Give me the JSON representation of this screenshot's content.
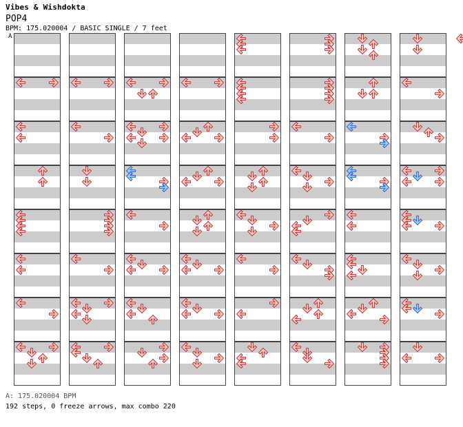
{
  "header": {
    "song_title": "Vibes & Wishdokta",
    "chart_name": "POP4",
    "info_line": "BPM: 175.020004 / BASIC SINGLE / 7 feet",
    "marker_label": "A"
  },
  "footer": {
    "bpm_line": "A: 175.020004 BPM",
    "stats_line": "192 steps, 0 freeze arrows, max combo 220"
  },
  "colors": {
    "normal_arrow_fill": "#ffcccc",
    "normal_arrow_stroke": "#cc3333",
    "blue_arrow_fill": "#99ccff",
    "blue_arrow_stroke": "#3366cc",
    "shade_band": "#cccccc",
    "cursor_line": "#3b6fd0"
  },
  "chart": {
    "columns": 8,
    "rows_per_column": 8,
    "slots_per_measure": 16,
    "lane_order": [
      "left",
      "down",
      "up",
      "right"
    ],
    "notes": [
      [
        0,
        1,
        0,
        "left",
        "red"
      ],
      [
        0,
        1,
        0,
        "right",
        "red"
      ],
      [
        0,
        2,
        0,
        "left",
        "red"
      ],
      [
        0,
        2,
        4,
        "left",
        "red"
      ],
      [
        0,
        3,
        0,
        "up",
        "red"
      ],
      [
        0,
        3,
        4,
        "up",
        "red"
      ],
      [
        0,
        4,
        0,
        "left",
        "red"
      ],
      [
        0,
        4,
        2,
        "left",
        "red"
      ],
      [
        0,
        4,
        4,
        "left",
        "red"
      ],
      [
        0,
        4,
        6,
        "left",
        "red"
      ],
      [
        0,
        5,
        0,
        "left",
        "red"
      ],
      [
        0,
        5,
        4,
        "left",
        "red"
      ],
      [
        0,
        6,
        0,
        "left",
        "red"
      ],
      [
        0,
        6,
        4,
        "right",
        "red"
      ],
      [
        0,
        7,
        0,
        "left",
        "red"
      ],
      [
        0,
        7,
        0,
        "right",
        "red"
      ],
      [
        0,
        7,
        2,
        "down",
        "red"
      ],
      [
        0,
        7,
        4,
        "up",
        "red"
      ],
      [
        0,
        7,
        6,
        "down",
        "red"
      ],
      [
        1,
        1,
        0,
        "left",
        "red"
      ],
      [
        1,
        1,
        0,
        "right",
        "red"
      ],
      [
        1,
        2,
        0,
        "left",
        "red"
      ],
      [
        1,
        2,
        4,
        "right",
        "red"
      ],
      [
        1,
        3,
        0,
        "down",
        "red"
      ],
      [
        1,
        3,
        4,
        "down",
        "red"
      ],
      [
        1,
        4,
        0,
        "right",
        "red"
      ],
      [
        1,
        4,
        2,
        "right",
        "red"
      ],
      [
        1,
        4,
        4,
        "right",
        "red"
      ],
      [
        1,
        4,
        6,
        "right",
        "red"
      ],
      [
        1,
        5,
        0,
        "left",
        "red"
      ],
      [
        1,
        5,
        4,
        "right",
        "red"
      ],
      [
        1,
        6,
        0,
        "left",
        "red"
      ],
      [
        1,
        6,
        0,
        "right",
        "red"
      ],
      [
        1,
        6,
        2,
        "down",
        "red"
      ],
      [
        1,
        6,
        4,
        "left",
        "red"
      ],
      [
        1,
        6,
        6,
        "down",
        "red"
      ],
      [
        1,
        7,
        0,
        "left",
        "red"
      ],
      [
        1,
        7,
        0,
        "right",
        "red"
      ],
      [
        1,
        7,
        2,
        "left",
        "red"
      ],
      [
        1,
        7,
        4,
        "down",
        "red"
      ],
      [
        1,
        7,
        6,
        "up",
        "red"
      ],
      [
        2,
        1,
        0,
        "left",
        "red"
      ],
      [
        2,
        1,
        0,
        "right",
        "red"
      ],
      [
        2,
        1,
        4,
        "down",
        "red"
      ],
      [
        2,
        1,
        4,
        "up",
        "red"
      ],
      [
        2,
        2,
        0,
        "left",
        "red"
      ],
      [
        2,
        2,
        0,
        "right",
        "red"
      ],
      [
        2,
        2,
        2,
        "down",
        "red"
      ],
      [
        2,
        2,
        4,
        "left",
        "red"
      ],
      [
        2,
        2,
        4,
        "right",
        "red"
      ],
      [
        2,
        2,
        6,
        "down",
        "red"
      ],
      [
        2,
        3,
        0,
        "left",
        "blue"
      ],
      [
        2,
        3,
        2,
        "left",
        "blue"
      ],
      [
        2,
        3,
        4,
        "right",
        "red"
      ],
      [
        2,
        3,
        6,
        "right",
        "blue"
      ],
      [
        2,
        4,
        0,
        "left",
        "red"
      ],
      [
        2,
        4,
        4,
        "right",
        "red"
      ],
      [
        2,
        5,
        0,
        "left",
        "red"
      ],
      [
        2,
        5,
        2,
        "down",
        "red"
      ],
      [
        2,
        5,
        4,
        "left",
        "red"
      ],
      [
        2,
        5,
        4,
        "right",
        "red"
      ],
      [
        2,
        6,
        0,
        "left",
        "red"
      ],
      [
        2,
        6,
        2,
        "down",
        "red"
      ],
      [
        2,
        6,
        4,
        "left",
        "red"
      ],
      [
        2,
        6,
        6,
        "up",
        "red"
      ],
      [
        2,
        7,
        0,
        "right",
        "red"
      ],
      [
        2,
        7,
        2,
        "down",
        "red"
      ],
      [
        2,
        7,
        4,
        "right",
        "red"
      ],
      [
        2,
        7,
        6,
        "up",
        "red"
      ],
      [
        3,
        1,
        0,
        "left",
        "red"
      ],
      [
        3,
        1,
        0,
        "right",
        "red"
      ],
      [
        3,
        2,
        0,
        "up",
        "red"
      ],
      [
        3,
        2,
        2,
        "down",
        "red"
      ],
      [
        3,
        2,
        4,
        "left",
        "red"
      ],
      [
        3,
        2,
        4,
        "right",
        "red"
      ],
      [
        3,
        3,
        0,
        "up",
        "red"
      ],
      [
        3,
        3,
        2,
        "down",
        "red"
      ],
      [
        3,
        3,
        4,
        "left",
        "red"
      ],
      [
        3,
        3,
        4,
        "right",
        "red"
      ],
      [
        3,
        4,
        0,
        "up",
        "red"
      ],
      [
        3,
        4,
        2,
        "down",
        "red"
      ],
      [
        3,
        4,
        4,
        "up",
        "red"
      ],
      [
        3,
        4,
        6,
        "down",
        "red"
      ],
      [
        3,
        5,
        0,
        "left",
        "red"
      ],
      [
        3,
        5,
        2,
        "down",
        "red"
      ],
      [
        3,
        5,
        4,
        "left",
        "red"
      ],
      [
        3,
        5,
        4,
        "right",
        "red"
      ],
      [
        3,
        6,
        0,
        "left",
        "red"
      ],
      [
        3,
        6,
        2,
        "down",
        "red"
      ],
      [
        3,
        6,
        4,
        "left",
        "red"
      ],
      [
        3,
        6,
        4,
        "right",
        "red"
      ],
      [
        3,
        7,
        0,
        "left",
        "red"
      ],
      [
        3,
        7,
        2,
        "down",
        "red"
      ],
      [
        3,
        7,
        4,
        "right",
        "red"
      ],
      [
        3,
        7,
        6,
        "down",
        "red"
      ],
      [
        4,
        0,
        0,
        "left",
        "red"
      ],
      [
        4,
        0,
        2,
        "left",
        "red"
      ],
      [
        4,
        0,
        4,
        "left",
        "red"
      ],
      [
        4,
        1,
        0,
        "left",
        "red"
      ],
      [
        4,
        1,
        2,
        "left",
        "red"
      ],
      [
        4,
        1,
        4,
        "left",
        "red"
      ],
      [
        4,
        1,
        6,
        "left",
        "red"
      ],
      [
        4,
        2,
        0,
        "right",
        "red"
      ],
      [
        4,
        2,
        4,
        "right",
        "red"
      ],
      [
        4,
        3,
        0,
        "up",
        "red"
      ],
      [
        4,
        3,
        2,
        "down",
        "red"
      ],
      [
        4,
        3,
        4,
        "up",
        "red"
      ],
      [
        4,
        3,
        6,
        "down",
        "red"
      ],
      [
        4,
        4,
        0,
        "left",
        "red"
      ],
      [
        4,
        4,
        2,
        "down",
        "red"
      ],
      [
        4,
        4,
        4,
        "right",
        "red"
      ],
      [
        4,
        4,
        6,
        "down",
        "red"
      ],
      [
        4,
        5,
        0,
        "left",
        "red"
      ],
      [
        4,
        5,
        4,
        "right",
        "red"
      ],
      [
        4,
        6,
        0,
        "right",
        "red"
      ],
      [
        4,
        6,
        4,
        "left",
        "red"
      ],
      [
        4,
        7,
        0,
        "down",
        "red"
      ],
      [
        4,
        7,
        2,
        "up",
        "red"
      ],
      [
        4,
        7,
        4,
        "left",
        "red"
      ],
      [
        4,
        7,
        6,
        "left",
        "red"
      ],
      [
        5,
        0,
        0,
        "right",
        "red"
      ],
      [
        5,
        0,
        2,
        "right",
        "red"
      ],
      [
        5,
        0,
        4,
        "right",
        "red"
      ],
      [
        5,
        1,
        0,
        "right",
        "red"
      ],
      [
        5,
        1,
        2,
        "right",
        "red"
      ],
      [
        5,
        1,
        4,
        "right",
        "red"
      ],
      [
        5,
        1,
        6,
        "right",
        "red"
      ],
      [
        5,
        2,
        0,
        "left",
        "red"
      ],
      [
        5,
        2,
        4,
        "right",
        "red"
      ],
      [
        5,
        3,
        0,
        "left",
        "red"
      ],
      [
        5,
        3,
        2,
        "down",
        "red"
      ],
      [
        5,
        3,
        4,
        "right",
        "red"
      ],
      [
        5,
        3,
        6,
        "down",
        "red"
      ],
      [
        5,
        4,
        0,
        "right",
        "red"
      ],
      [
        5,
        4,
        2,
        "down",
        "red"
      ],
      [
        5,
        4,
        4,
        "left",
        "red"
      ],
      [
        5,
        4,
        6,
        "left",
        "red"
      ],
      [
        5,
        5,
        0,
        "left",
        "red"
      ],
      [
        5,
        5,
        2,
        "down",
        "red"
      ],
      [
        5,
        5,
        4,
        "right",
        "red"
      ],
      [
        5,
        5,
        6,
        "right",
        "red"
      ],
      [
        5,
        6,
        0,
        "up",
        "red"
      ],
      [
        5,
        6,
        2,
        "down",
        "red"
      ],
      [
        5,
        6,
        4,
        "up",
        "red"
      ],
      [
        5,
        6,
        6,
        "left",
        "red"
      ],
      [
        5,
        7,
        0,
        "left",
        "red"
      ],
      [
        5,
        7,
        2,
        "down",
        "red"
      ],
      [
        5,
        7,
        4,
        "down",
        "red"
      ],
      [
        5,
        7,
        6,
        "right",
        "red"
      ],
      [
        6,
        0,
        0,
        "down",
        "red"
      ],
      [
        6,
        0,
        2,
        "up",
        "red"
      ],
      [
        6,
        0,
        4,
        "down",
        "red"
      ],
      [
        6,
        0,
        6,
        "up",
        "red"
      ],
      [
        6,
        1,
        0,
        "up",
        "red"
      ],
      [
        6,
        1,
        4,
        "down",
        "red"
      ],
      [
        6,
        1,
        4,
        "up",
        "red"
      ],
      [
        6,
        2,
        0,
        "left",
        "blue"
      ],
      [
        6,
        2,
        4,
        "right",
        "red"
      ],
      [
        6,
        2,
        6,
        "right",
        "blue"
      ],
      [
        6,
        3,
        0,
        "left",
        "blue"
      ],
      [
        6,
        3,
        2,
        "left",
        "blue"
      ],
      [
        6,
        3,
        4,
        "right",
        "red"
      ],
      [
        6,
        3,
        6,
        "right",
        "blue"
      ],
      [
        6,
        4,
        0,
        "left",
        "red"
      ],
      [
        6,
        4,
        4,
        "left",
        "red"
      ],
      [
        6,
        5,
        0,
        "left",
        "red"
      ],
      [
        6,
        5,
        2,
        "left",
        "red"
      ],
      [
        6,
        5,
        4,
        "down",
        "red"
      ],
      [
        6,
        5,
        6,
        "left",
        "red"
      ],
      [
        6,
        6,
        0,
        "up",
        "red"
      ],
      [
        6,
        6,
        2,
        "down",
        "red"
      ],
      [
        6,
        6,
        4,
        "left",
        "red"
      ],
      [
        6,
        6,
        6,
        "right",
        "red"
      ],
      [
        6,
        7,
        0,
        "down",
        "red"
      ],
      [
        6,
        7,
        0,
        "right",
        "red"
      ],
      [
        6,
        7,
        2,
        "right",
        "red"
      ],
      [
        6,
        7,
        4,
        "right",
        "red"
      ],
      [
        6,
        7,
        6,
        "right",
        "red"
      ],
      [
        7,
        0,
        0,
        "down",
        "red"
      ],
      [
        7,
        0,
        4,
        "down",
        "red"
      ],
      [
        7,
        1,
        0,
        "left",
        "red"
      ],
      [
        7,
        1,
        4,
        "right",
        "red"
      ],
      [
        7,
        2,
        0,
        "down",
        "red"
      ],
      [
        7,
        2,
        2,
        "up",
        "red"
      ],
      [
        7,
        2,
        4,
        "right",
        "red"
      ],
      [
        7,
        3,
        0,
        "left",
        "red"
      ],
      [
        7,
        3,
        0,
        "right",
        "red"
      ],
      [
        7,
        3,
        2,
        "down",
        "blue"
      ],
      [
        7,
        3,
        4,
        "left",
        "red"
      ],
      [
        7,
        3,
        4,
        "right",
        "red"
      ],
      [
        7,
        4,
        0,
        "left",
        "red"
      ],
      [
        7,
        4,
        2,
        "left",
        "red"
      ],
      [
        7,
        4,
        2,
        "blue",
        "blue"
      ],
      [
        7,
        4,
        4,
        "left",
        "red"
      ],
      [
        7,
        4,
        4,
        "right",
        "red"
      ],
      [
        7,
        5,
        0,
        "left",
        "red"
      ],
      [
        7,
        5,
        2,
        "down",
        "red"
      ],
      [
        7,
        5,
        4,
        "right",
        "red"
      ],
      [
        7,
        5,
        6,
        "down",
        "red"
      ],
      [
        7,
        6,
        0,
        "left",
        "red"
      ],
      [
        7,
        6,
        2,
        "left",
        "red"
      ],
      [
        7,
        6,
        2,
        "down",
        "blue"
      ],
      [
        7,
        6,
        4,
        "right",
        "red"
      ],
      [
        7,
        7,
        0,
        "down",
        "red"
      ],
      [
        7,
        7,
        4,
        "left",
        "red"
      ],
      [
        7,
        7,
        4,
        "right",
        "red"
      ]
    ]
  }
}
